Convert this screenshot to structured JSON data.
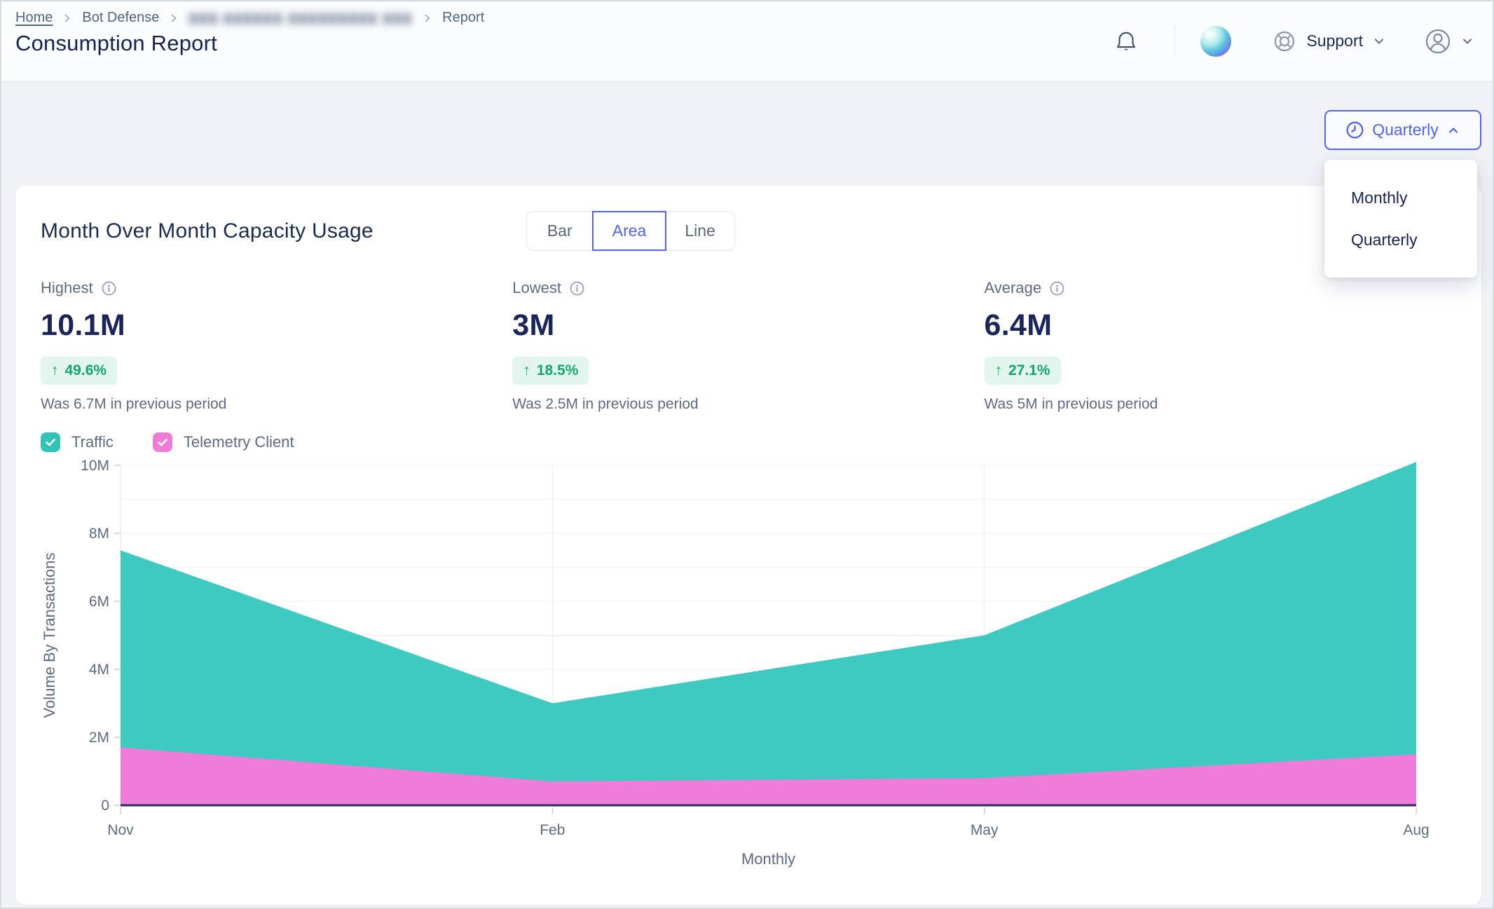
{
  "breadcrumb": {
    "items": [
      {
        "label": "Home"
      },
      {
        "label": "Bot Defense"
      },
      {
        "label": "▇▇▇ ▇▇▇▇▇▇ ▇▇▇▇▇▇▇▇▇ ▇▇▇",
        "redacted": true
      },
      {
        "label": "Report"
      }
    ]
  },
  "header": {
    "title": "Consumption Report",
    "support_label": "Support"
  },
  "period_selector": {
    "selected": "Quarterly",
    "options": [
      "Monthly",
      "Quarterly"
    ]
  },
  "card": {
    "title": "Month Over Month Capacity Usage",
    "chart_type_toggle": {
      "options": [
        "Bar",
        "Area",
        "Line"
      ],
      "selected": "Area"
    },
    "stats": [
      {
        "label": "Highest",
        "value": "10.1M",
        "change": "49.6%",
        "direction": "up",
        "caption": "Was 6.7M in previous period"
      },
      {
        "label": "Lowest",
        "value": "3M",
        "change": "18.5%",
        "direction": "up",
        "caption": "Was 2.5M in previous period"
      },
      {
        "label": "Average",
        "value": "6.4M",
        "change": "27.1%",
        "direction": "up",
        "caption": "Was 5M in previous period"
      }
    ],
    "legend": [
      {
        "label": "Traffic",
        "checked": true,
        "color": "#2fc4b5"
      },
      {
        "label": "Telemetry Client",
        "checked": true,
        "color": "#ef7bd8"
      }
    ]
  },
  "chart_data": {
    "type": "area",
    "stacked": true,
    "categories": [
      "Nov",
      "Feb",
      "May",
      "Aug"
    ],
    "series": [
      {
        "name": "Telemetry Client",
        "color": "#f07cda",
        "values": [
          1.7,
          0.7,
          0.8,
          1.5
        ]
      },
      {
        "name": "Traffic",
        "color": "#3ec9c1",
        "values": [
          5.8,
          2.3,
          4.2,
          8.6
        ]
      }
    ],
    "stack_totals": [
      7.5,
      3.0,
      5.0,
      10.1
    ],
    "title": "Month Over Month Capacity Usage",
    "xlabel": "Monthly",
    "ylabel": "Volume By Transactions",
    "ylim": [
      0,
      10
    ],
    "grid_step": 1,
    "y_ticks": [
      {
        "v": 0,
        "label": "0"
      },
      {
        "v": 2,
        "label": "2M"
      },
      {
        "v": 4,
        "label": "4M"
      },
      {
        "v": 6,
        "label": "6M"
      },
      {
        "v": 8,
        "label": "8M"
      },
      {
        "v": 10,
        "label": "10M"
      }
    ],
    "x_gridlines": [
      "Feb",
      "May"
    ],
    "grid": "horizontal every 1M, vertical at Feb and May",
    "legend_position": "above chart as checkboxes"
  },
  "icons": {
    "up_arrow": "↑"
  },
  "colors": {
    "accent": "#4f62f5",
    "navy_text": "#1b2559",
    "green_text": "#10a76c",
    "green_bg": "#e2f6ed",
    "teal_area": "#3ec9c1",
    "pink_area": "#f07cda",
    "axis_baseline": "#232d5f",
    "grid_line": "#edeff4",
    "gray_text": "#5d6b82"
  }
}
